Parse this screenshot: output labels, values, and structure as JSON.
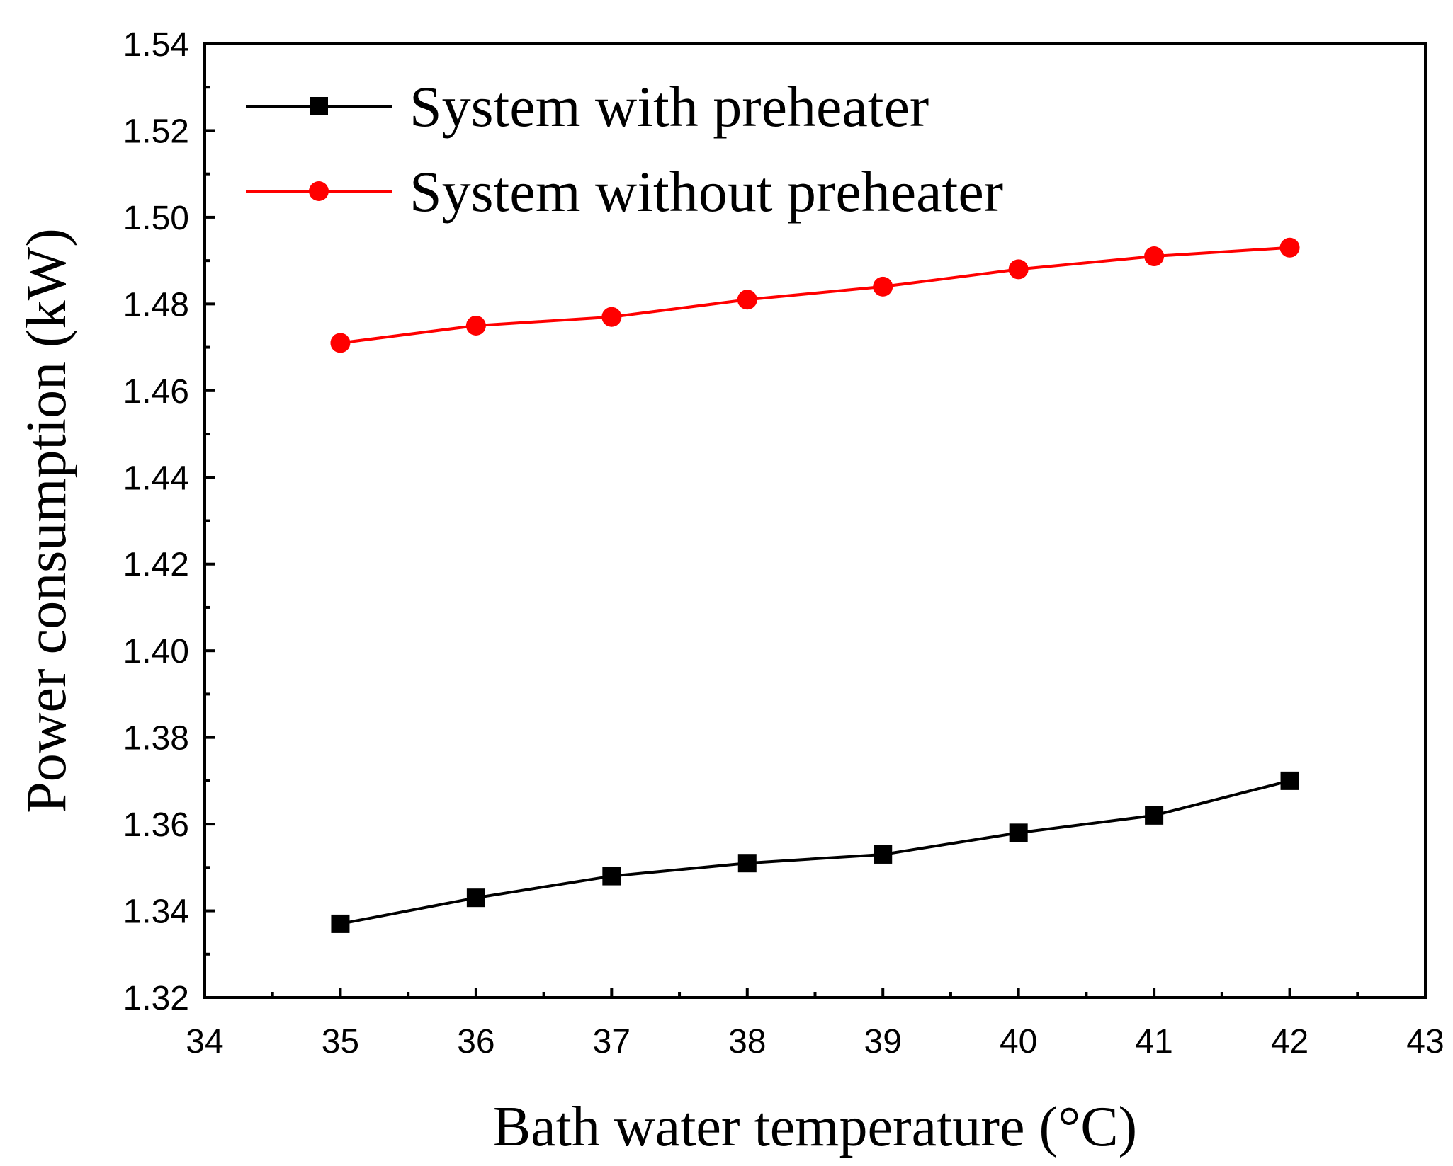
{
  "chart_data": {
    "type": "line",
    "title": "",
    "xlabel": "Bath water temperature (°C)",
    "ylabel": "Power consumption (kW)",
    "xlim": [
      34,
      43
    ],
    "ylim": [
      1.32,
      1.54
    ],
    "xticks": [
      34,
      35,
      36,
      37,
      38,
      39,
      40,
      41,
      42,
      43
    ],
    "yticks": [
      1.32,
      1.34,
      1.36,
      1.38,
      1.4,
      1.42,
      1.44,
      1.46,
      1.48,
      1.5,
      1.52,
      1.54
    ],
    "xtick_labels": [
      "34",
      "35",
      "36",
      "37",
      "38",
      "39",
      "40",
      "41",
      "42",
      "43"
    ],
    "ytick_labels": [
      "1.32",
      "1.34",
      "1.36",
      "1.38",
      "1.40",
      "1.42",
      "1.44",
      "1.46",
      "1.48",
      "1.50",
      "1.52",
      "1.54"
    ],
    "grid": false,
    "legend_position": "top-left",
    "x": [
      35,
      36,
      37,
      38,
      39,
      40,
      41,
      42
    ],
    "series": [
      {
        "name": "System with preheater",
        "color": "#000000",
        "marker": "square",
        "values": [
          1.337,
          1.343,
          1.348,
          1.351,
          1.353,
          1.358,
          1.362,
          1.37
        ]
      },
      {
        "name": "System without preheater",
        "color": "#ff0000",
        "marker": "circle",
        "values": [
          1.471,
          1.475,
          1.477,
          1.481,
          1.484,
          1.488,
          1.491,
          1.493
        ]
      }
    ]
  }
}
